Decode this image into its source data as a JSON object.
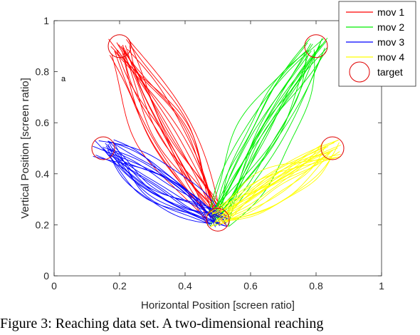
{
  "chart_data": {
    "type": "line",
    "xlabel": "Horizontal Position [screen ratio]",
    "ylabel": "Vertical Position [screen ratio]",
    "xlim": [
      0,
      1
    ],
    "ylim": [
      0,
      1
    ],
    "xticks": [
      "0",
      "0.2",
      "0.4",
      "0.6",
      "0.8",
      "1"
    ],
    "yticks": [
      "0",
      "0.2",
      "0.4",
      "0.6",
      "0.8",
      "1"
    ],
    "annotation": "a",
    "legend_position": "top-right",
    "start": [
      0.5,
      0.22
    ],
    "series": [
      {
        "name": "mov 1",
        "color": "#ff0000",
        "trials": 22,
        "end": [
          0.2,
          0.9
        ]
      },
      {
        "name": "mov 2",
        "color": "#00ee00",
        "trials": 22,
        "end": [
          0.8,
          0.9
        ]
      },
      {
        "name": "mov 3",
        "color": "#0000ff",
        "trials": 22,
        "end": [
          0.15,
          0.5
        ]
      },
      {
        "name": "mov 4",
        "color": "#ffff00",
        "trials": 22,
        "end": [
          0.85,
          0.5
        ]
      }
    ],
    "targets": {
      "name": "target",
      "color": "#e00000",
      "centers": [
        [
          0.5,
          0.22
        ],
        [
          0.2,
          0.9
        ],
        [
          0.8,
          0.9
        ],
        [
          0.15,
          0.5
        ],
        [
          0.85,
          0.5
        ]
      ]
    }
  },
  "caption": "Figure 3:  Reaching data set.  A two-dimensional reaching"
}
